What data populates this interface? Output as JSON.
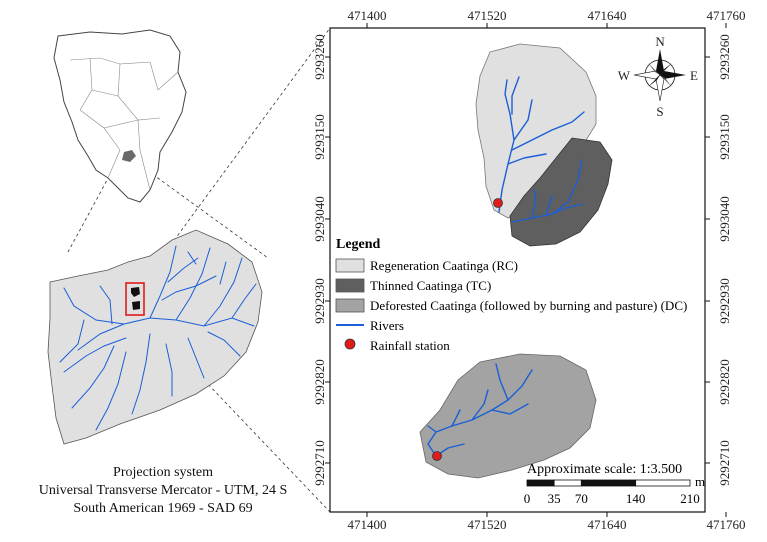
{
  "map": {
    "x_ticks": [
      "471400",
      "471520",
      "471640",
      "471760"
    ],
    "y_ticks": [
      "9293260",
      "9293150",
      "9293040",
      "9292930",
      "9292820",
      "9292710"
    ],
    "legend": {
      "title": "Legend",
      "items": [
        {
          "label": "Regeneration Caatinga (RC)",
          "color": "#e0e0e0"
        },
        {
          "label": "Thinned Caatinga (TC)",
          "color": "#5f5f5f"
        },
        {
          "label": "Deforested Caatinga (followed by burning and pasture) (DC)",
          "color": "#a3a3a3"
        },
        {
          "label": "Rivers",
          "color": "#1a5fd6"
        },
        {
          "label": "Rainfall station",
          "color": "#e01b1b"
        }
      ]
    },
    "compass": {
      "n": "N",
      "s": "S",
      "e": "E",
      "w": "W"
    },
    "scale": {
      "label": "Approximate scale: 1:3.500",
      "unit": "m",
      "ticks": [
        "0",
        "35",
        "70",
        "140",
        "210"
      ]
    }
  },
  "projection": {
    "line1": "Projection system",
    "line2": "Universal Transverse Mercator - UTM, 24 S",
    "line3": "South American 1969 - SAD 69"
  }
}
